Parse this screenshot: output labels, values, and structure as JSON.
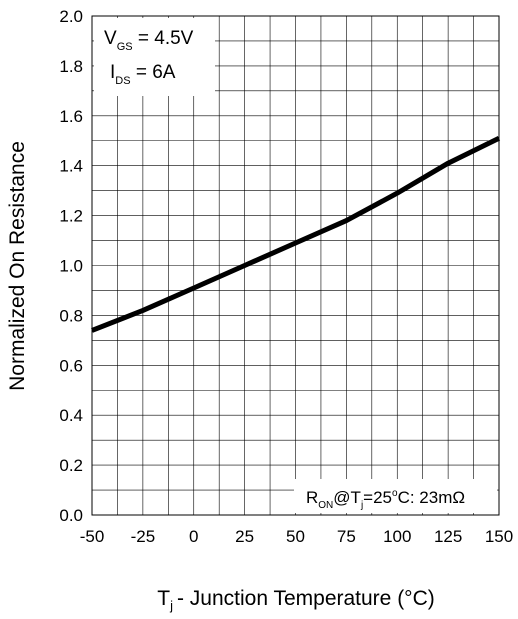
{
  "chart_data": {
    "type": "line",
    "xlabel_main": "T",
    "xlabel_sub": "j",
    "xlabel_rest": "- Junction Temperature (°C)",
    "ylabel": "Normalized On Resistance",
    "xlim": [
      -50,
      150
    ],
    "ylim": [
      0.0,
      2.0
    ],
    "x_ticks": [
      "-50",
      "-25",
      "0",
      "25",
      "50",
      "75",
      "100",
      "125",
      "150"
    ],
    "y_ticks": [
      "0.0",
      "0.2",
      "0.4",
      "0.6",
      "0.8",
      "1.0",
      "1.2",
      "1.4",
      "1.6",
      "1.8",
      "2.0"
    ],
    "grid": true,
    "x": [
      -50,
      -25,
      0,
      25,
      50,
      75,
      100,
      125,
      150
    ],
    "y": [
      0.74,
      0.82,
      0.91,
      1.0,
      1.09,
      1.18,
      1.29,
      1.41,
      1.51
    ],
    "annotation_top": {
      "line1_main": "V",
      "line1_sub": "GS",
      "line1_rest": " = 4.5V",
      "line2_main": "I",
      "line2_sub": "DS",
      "line2_rest": " = 6A"
    },
    "annotation_bottom": {
      "p1": "R",
      "p1_sub": "ON",
      "p2": "@T",
      "p2_sub": "j",
      "p3": "=25",
      "p3_sup": "o",
      "p4": "C: 23mΩ"
    }
  }
}
